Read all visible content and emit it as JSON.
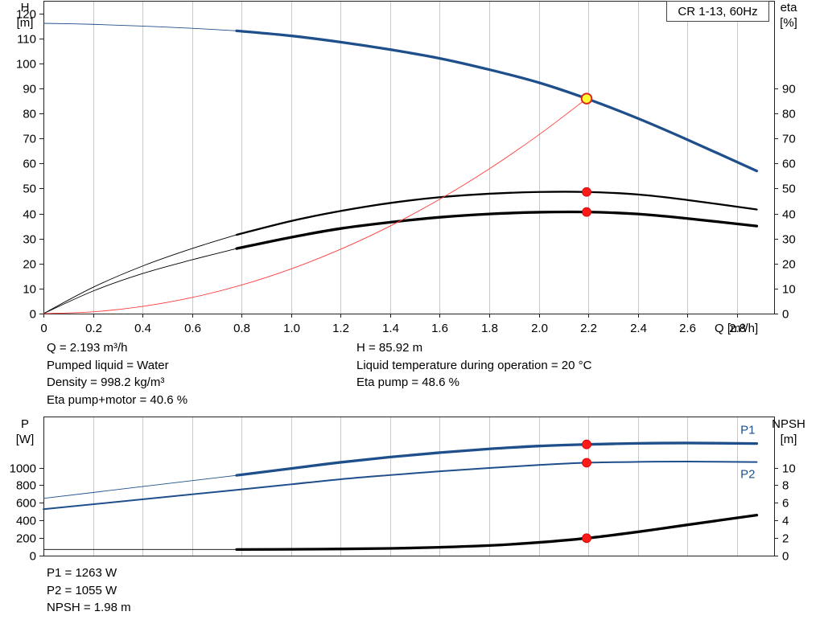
{
  "chart_data": [
    {
      "type": "line",
      "title": "CR 1-13, 60Hz",
      "xlabel": "Q [m³/h]",
      "ylabel_left_lines": [
        "H",
        "[m]"
      ],
      "ylabel_right_lines": [
        "eta",
        "[%]"
      ],
      "xlim": [
        0,
        2.95
      ],
      "ylim_left": [
        0,
        125
      ],
      "ylim_right": [
        0,
        125
      ],
      "x_ticks": [
        0,
        0.2,
        0.4,
        0.6,
        0.8,
        1.0,
        1.2,
        1.4,
        1.6,
        1.8,
        2.0,
        2.2,
        2.4,
        2.6,
        2.8
      ],
      "x_tick_labels": [
        "0",
        "0.2",
        "0.4",
        "0.6",
        "0.8",
        "1.0",
        "1.2",
        "1.4",
        "1.6",
        "1.8",
        "2.0",
        "2.2",
        "2.4",
        "2.6",
        "2.8"
      ],
      "y_left_ticks": [
        0,
        10,
        20,
        30,
        40,
        50,
        60,
        70,
        80,
        90,
        100,
        110,
        120
      ],
      "y_right_ticks": [
        0,
        10,
        20,
        30,
        40,
        50,
        60,
        70,
        80,
        90
      ],
      "grid": "vertical",
      "series": [
        {
          "id": "H",
          "axis": "left",
          "color": "#1f4f8b",
          "x": [
            0,
            0.2,
            0.4,
            0.6,
            0.78,
            1.0,
            1.2,
            1.4,
            1.6,
            1.8,
            2.0,
            2.193,
            2.4,
            2.6,
            2.88
          ],
          "values": [
            116,
            115.6,
            114.9,
            114,
            113,
            111,
            108.5,
            105.5,
            102,
            97.5,
            92.3,
            85.92,
            78,
            69.5,
            57
          ],
          "thin_until_x": 0.78
        },
        {
          "id": "eta_pump",
          "axis": "right",
          "color": "#000000",
          "x": [
            0,
            0.2,
            0.4,
            0.6,
            0.78,
            1.0,
            1.2,
            1.4,
            1.6,
            1.8,
            2.0,
            2.193,
            2.4,
            2.6,
            2.88
          ],
          "values": [
            0,
            10.5,
            19,
            26,
            31.5,
            37,
            41,
            44.2,
            46.5,
            47.9,
            48.6,
            48.6,
            47.6,
            45.4,
            41.6
          ],
          "thin_until_x": 0.78
        },
        {
          "id": "eta_pump_motor",
          "axis": "right",
          "color": "#000000",
          "x": [
            0,
            0.2,
            0.4,
            0.6,
            0.78,
            1.0,
            1.2,
            1.4,
            1.6,
            1.8,
            2.0,
            2.193,
            2.4,
            2.6,
            2.88
          ],
          "values": [
            0,
            9,
            16,
            21.5,
            26,
            30.5,
            34,
            36.5,
            38.5,
            39.8,
            40.5,
            40.6,
            39.8,
            38,
            35
          ],
          "thin_until_x": 0.78
        },
        {
          "id": "system_curve",
          "axis": "left",
          "color": "#ff3b3b",
          "x": [
            0,
            0.2,
            0.4,
            0.6,
            0.8,
            1.0,
            1.2,
            1.4,
            1.6,
            1.8,
            2.0,
            2.193
          ],
          "values": [
            0,
            0.71,
            2.86,
            6.43,
            11.43,
            17.86,
            25.72,
            35.0,
            45.72,
            57.86,
            71.44,
            85.92
          ],
          "thin_until_x": 2.2
        }
      ],
      "points": [
        {
          "series": "H",
          "x": 2.193,
          "y": 85.92,
          "style": "duty"
        },
        {
          "series": "eta_pump",
          "x": 2.193,
          "y": 48.6,
          "style": "red"
        },
        {
          "series": "eta_pump_motor",
          "x": 2.193,
          "y": 40.6,
          "style": "red"
        }
      ]
    },
    {
      "type": "line",
      "title": "",
      "xlabel": "",
      "ylabel_left_lines": [
        "P",
        "[W]"
      ],
      "ylabel_right_lines": [
        "NPSH",
        "[m]"
      ],
      "xlim": [
        0,
        2.95
      ],
      "ylim_left": [
        0,
        1580
      ],
      "ylim_right": [
        0,
        15.8
      ],
      "y_left_ticks": [
        0,
        200,
        400,
        600,
        800,
        1000
      ],
      "y_right_ticks": [
        0,
        2,
        4,
        6,
        8,
        10
      ],
      "grid": "vertical",
      "series": [
        {
          "id": "P1",
          "name": "P1",
          "axis": "left",
          "color": "#1f4f8b",
          "x": [
            0,
            0.78,
            1.0,
            1.2,
            1.4,
            1.6,
            1.8,
            2.0,
            2.193,
            2.4,
            2.6,
            2.88
          ],
          "values": [
            650,
            912,
            990,
            1060,
            1120,
            1170,
            1212,
            1245,
            1263,
            1275,
            1279,
            1273
          ],
          "thin_until_x": 0.78
        },
        {
          "id": "P2",
          "name": "P2",
          "axis": "left",
          "color": "#1f4f8b",
          "x": [
            0,
            0.78,
            1.0,
            1.2,
            1.4,
            1.6,
            1.8,
            2.0,
            2.193,
            2.4,
            2.6,
            2.88
          ],
          "values": [
            527,
            747,
            810,
            868,
            915,
            958,
            995,
            1030,
            1055,
            1065,
            1068,
            1063
          ],
          "thin_until_x": 0.0
        },
        {
          "id": "NPSH",
          "axis": "right",
          "color": "#000000",
          "x": [
            0,
            0.78,
            1.0,
            1.2,
            1.4,
            1.6,
            1.8,
            2.0,
            2.193,
            2.4,
            2.6,
            2.88
          ],
          "values": [
            0.7,
            0.7,
            0.72,
            0.76,
            0.82,
            0.95,
            1.15,
            1.5,
            1.98,
            2.7,
            3.5,
            4.6
          ],
          "thin_until_x": 0.78
        }
      ],
      "points": [
        {
          "series": "P1",
          "x": 2.193,
          "y": 1263,
          "style": "red"
        },
        {
          "series": "P2",
          "x": 2.193,
          "y": 1055,
          "style": "red"
        },
        {
          "series": "NPSH",
          "x": 2.193,
          "y": 1.98,
          "style": "red"
        }
      ]
    }
  ],
  "info_top_left": [
    "Q = 2.193 m³/h",
    "Pumped liquid = Water",
    "Density = 998.2 kg/m³",
    "Eta pump+motor = 40.6 %"
  ],
  "info_top_right": [
    "H = 85.92 m",
    "Liquid temperature during operation = 20 °C",
    "Eta pump = 48.6 %"
  ],
  "info_bottom": [
    "P1 = 1263 W",
    "P2 = 1055 W",
    "NPSH = 1.98 m"
  ]
}
